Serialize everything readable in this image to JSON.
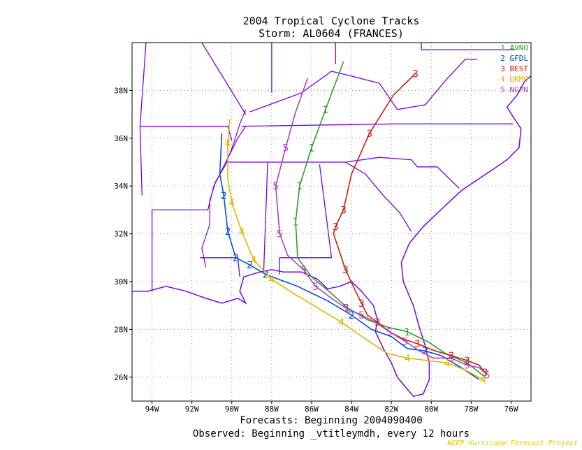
{
  "header": {
    "title": "2004 Tropical Cyclone Tracks",
    "subtitle": "Storm: AL0604 (FRANCES)"
  },
  "footer": {
    "forecasts": "Forecasts: Beginning 2004090400",
    "observed": "Observed: Beginning _vtitleymdh, every 12 hours",
    "credit": "NCEP Hurricane Forecast Project"
  },
  "colors": {
    "map_lines": "#7a00e6",
    "grid": "#8a8a8a",
    "series": [
      "#2aa02a",
      "#0050d8",
      "#c81e0a",
      "#e6b400",
      "#b040c0"
    ]
  },
  "chart_data": {
    "type": "line",
    "xlim": [
      -95.0,
      -75.0
    ],
    "ylim": [
      25.0,
      40.0
    ],
    "grid": true,
    "legend_position": "top-right",
    "x_ticks": [
      {
        "value": -94,
        "label": "94W"
      },
      {
        "value": -92,
        "label": "92W"
      },
      {
        "value": -90,
        "label": "90W"
      },
      {
        "value": -88,
        "label": "88W"
      },
      {
        "value": -86,
        "label": "86W"
      },
      {
        "value": -84,
        "label": "84W"
      },
      {
        "value": -82,
        "label": "82W"
      },
      {
        "value": -80,
        "label": "80W"
      },
      {
        "value": -78,
        "label": "78W"
      },
      {
        "value": -76,
        "label": "76W"
      }
    ],
    "y_ticks": [
      {
        "value": 26,
        "label": "26N"
      },
      {
        "value": 28,
        "label": "28N"
      },
      {
        "value": 30,
        "label": "30N"
      },
      {
        "value": 32,
        "label": "32N"
      },
      {
        "value": 34,
        "label": "34N"
      },
      {
        "value": 36,
        "label": "36N"
      },
      {
        "value": 38,
        "label": "38N"
      }
    ],
    "series": [
      {
        "marker": "1",
        "name": "AVNO",
        "color": "#2aa02a",
        "x": [
          -77.3,
          -78.2,
          -79.3,
          -80.2,
          -81.2,
          -82.2,
          -83.2,
          -84.2,
          -85.0,
          -86.0,
          -86.7,
          -86.8,
          -86.6,
          -86.0,
          -85.3,
          -84.4
        ],
        "y": [
          26.0,
          26.6,
          27.0,
          27.5,
          27.9,
          28.1,
          28.4,
          28.9,
          29.5,
          30.2,
          31.0,
          32.5,
          34.0,
          35.6,
          37.2,
          39.2
        ],
        "labels": [
          false,
          false,
          false,
          false,
          true,
          false,
          false,
          true,
          false,
          false,
          false,
          true,
          true,
          true,
          true,
          false
        ]
      },
      {
        "marker": "2",
        "name": "GFDL",
        "color": "#0050d8",
        "x": [
          -77.6,
          -78.5,
          -79.5,
          -80.3,
          -81.2,
          -82.0,
          -83.0,
          -84.0,
          -85.2,
          -86.7,
          -88.3,
          -89.1,
          -89.8,
          -90.2,
          -90.4,
          -90.6,
          -90.5
        ],
        "y": [
          25.9,
          26.4,
          26.9,
          27.1,
          27.2,
          27.7,
          28.0,
          28.6,
          29.2,
          29.8,
          30.3,
          30.7,
          31.0,
          32.1,
          33.6,
          34.5,
          36.2
        ],
        "labels": [
          false,
          false,
          false,
          true,
          false,
          false,
          false,
          true,
          false,
          false,
          true,
          true,
          true,
          true,
          true,
          false,
          false
        ]
      },
      {
        "marker": "3",
        "name": "BEST",
        "color": "#c81e0a",
        "x": [
          -77.3,
          -77.6,
          -78.2,
          -79.0,
          -79.8,
          -80.7,
          -81.4,
          -82.1,
          -82.7,
          -83.2,
          -83.5,
          -83.8,
          -84.3,
          -84.9,
          -84.8,
          -84.4,
          -84.0,
          -83.1,
          -81.9,
          -80.8
        ],
        "y": [
          26.2,
          26.5,
          26.7,
          26.9,
          27.1,
          27.4,
          27.6,
          27.9,
          28.3,
          28.6,
          29.1,
          29.6,
          30.5,
          32.0,
          32.3,
          33.0,
          34.5,
          36.2,
          37.8,
          38.7
        ],
        "labels": [
          true,
          false,
          true,
          true,
          false,
          true,
          false,
          false,
          true,
          false,
          true,
          false,
          true,
          false,
          true,
          true,
          false,
          true,
          false,
          true
        ]
      },
      {
        "marker": "4",
        "name": "UKMO",
        "color": "#e6b400",
        "x": [
          -77.4,
          -78.3,
          -79.2,
          -80.2,
          -81.2,
          -82.2,
          -83.3,
          -84.5,
          -85.7,
          -86.9,
          -88.0,
          -88.9,
          -89.5,
          -90.0,
          -90.2,
          -90.2,
          -90.1
        ],
        "y": [
          25.9,
          26.3,
          26.6,
          26.7,
          26.8,
          27.0,
          27.6,
          28.3,
          28.9,
          29.5,
          30.1,
          30.9,
          32.1,
          33.3,
          34.3,
          35.8,
          36.8
        ],
        "labels": [
          true,
          false,
          true,
          false,
          true,
          false,
          false,
          true,
          false,
          false,
          true,
          true,
          true,
          true,
          false,
          true,
          false
        ]
      },
      {
        "marker": "5",
        "name": "NGPN",
        "color": "#b040c0",
        "x": [
          -77.2,
          -77.6,
          -78.2,
          -79.0,
          -79.9,
          -80.6,
          -81.3,
          -82.1,
          -82.8,
          -83.5,
          -84.3,
          -85.0,
          -85.8,
          -86.4,
          -87.2,
          -87.6,
          -87.8,
          -87.3,
          -86.8,
          -86.2
        ],
        "y": [
          26.1,
          26.4,
          26.5,
          26.8,
          26.8,
          27.1,
          27.5,
          27.9,
          28.3,
          28.6,
          28.9,
          29.3,
          29.8,
          30.5,
          31.1,
          32.0,
          34.0,
          35.6,
          37.1,
          38.5
        ],
        "labels": [
          true,
          false,
          true,
          true,
          false,
          false,
          true,
          true,
          false,
          true,
          true,
          false,
          true,
          true,
          false,
          true,
          true,
          true,
          false,
          false
        ]
      }
    ]
  }
}
